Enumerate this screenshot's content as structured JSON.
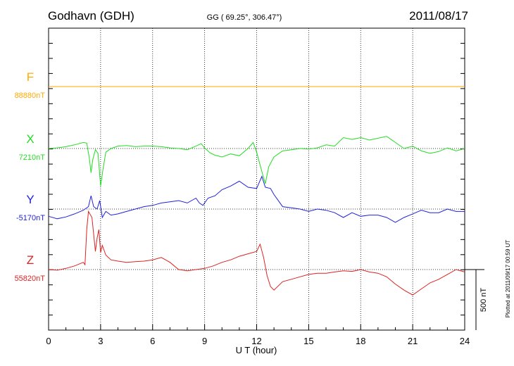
{
  "header": {
    "station": "Godhavn (GDH)",
    "coords": "GG ( 69.25°, 306.47°)",
    "date": "2011/08/17"
  },
  "side_note": "Plotted at 2011/09/17 00:59 UT",
  "scale_bar_label": "500 nT",
  "chart_data": {
    "type": "line",
    "xlabel": "U T (hour)",
    "xlim": [
      0,
      24
    ],
    "xticks": [
      "0",
      "3",
      "6",
      "9",
      "12",
      "15",
      "18",
      "21",
      "24"
    ],
    "nT_per_division": 500,
    "grid": "dotted vertical lines every 3 h; dotted baseline per series",
    "series": [
      {
        "name": "F",
        "baseline_label": "88880nT",
        "baseline": 88880,
        "color": "#ffaa00",
        "x": [
          0,
          24
        ],
        "y": [
          88880,
          88880
        ]
      },
      {
        "name": "X",
        "baseline_label": "7210nT",
        "baseline": 7210,
        "color": "#22dd22",
        "x": [
          0,
          0.5,
          1,
          1.5,
          2,
          2.2,
          2.35,
          2.45,
          2.55,
          2.7,
          2.85,
          3.0,
          3.15,
          3.3,
          3.6,
          4,
          4.5,
          5,
          5.5,
          6,
          6.5,
          7,
          7.5,
          8,
          8.5,
          8.8,
          9,
          9.3,
          9.6,
          10,
          10.5,
          11,
          11.5,
          11.8,
          12.0,
          12.3,
          12.5,
          12.7,
          13,
          13.5,
          14,
          14.5,
          15,
          15.5,
          16,
          16.5,
          17,
          17.5,
          18,
          18.5,
          19,
          19.5,
          20,
          20.5,
          21,
          21.5,
          22,
          22.5,
          23,
          23.5,
          24
        ],
        "y": [
          7210,
          7215,
          7225,
          7240,
          7260,
          7255,
          7130,
          7010,
          7120,
          7200,
          7170,
          6900,
          7050,
          7180,
          7210,
          7230,
          7235,
          7225,
          7230,
          7230,
          7225,
          7215,
          7210,
          7200,
          7230,
          7250,
          7215,
          7175,
          7155,
          7140,
          7165,
          7150,
          7210,
          7260,
          7180,
          7020,
          6920,
          7060,
          7140,
          7190,
          7200,
          7210,
          7205,
          7215,
          7240,
          7230,
          7300,
          7285,
          7300,
          7280,
          7295,
          7310,
          7260,
          7210,
          7230,
          7190,
          7170,
          7185,
          7215,
          7190,
          7210
        ]
      },
      {
        "name": "Y",
        "baseline_label": "-5170nT",
        "baseline": -5170,
        "color": "#2222dd",
        "x": [
          0,
          0.5,
          1,
          1.5,
          2,
          2.3,
          2.45,
          2.6,
          2.8,
          2.95,
          3.1,
          3.3,
          3.6,
          4,
          4.5,
          5,
          5.5,
          6,
          6.5,
          7,
          7.5,
          8,
          8.5,
          8.7,
          8.9,
          9.2,
          9.6,
          10,
          10.5,
          11,
          11.5,
          12,
          12.3,
          12.5,
          12.8,
          13,
          13.5,
          14,
          14.5,
          15,
          15.5,
          16,
          16.5,
          17,
          17.5,
          18,
          18.5,
          19,
          19.5,
          20,
          20.5,
          21,
          21.5,
          22,
          22.5,
          23,
          23.5,
          24
        ],
        "y": [
          -5230,
          -5250,
          -5235,
          -5210,
          -5180,
          -5150,
          -5060,
          -5150,
          -5170,
          -5100,
          -5240,
          -5190,
          -5220,
          -5210,
          -5190,
          -5170,
          -5150,
          -5140,
          -5120,
          -5110,
          -5100,
          -5120,
          -5080,
          -5120,
          -5140,
          -5080,
          -5060,
          -5010,
          -4980,
          -4940,
          -4990,
          -5000,
          -4900,
          -4990,
          -5000,
          -5050,
          -5150,
          -5160,
          -5170,
          -5190,
          -5170,
          -5180,
          -5200,
          -5240,
          -5200,
          -5230,
          -5220,
          -5220,
          -5240,
          -5280,
          -5240,
          -5210,
          -5180,
          -5200,
          -5200,
          -5170,
          -5190,
          -5190
        ]
      },
      {
        "name": "Z",
        "baseline_label": "55820nT",
        "baseline": 55820,
        "color": "#dd2222",
        "x": [
          0,
          0.5,
          1,
          1.5,
          2,
          2.1,
          2.2,
          2.3,
          2.5,
          2.7,
          2.8,
          2.9,
          3.0,
          3.1,
          3.3,
          3.6,
          4,
          4.5,
          5,
          5.5,
          6,
          6.5,
          7,
          7.5,
          8,
          8.5,
          9,
          9.5,
          10,
          10.5,
          11,
          11.5,
          12,
          12.2,
          12.4,
          12.6,
          12.8,
          13,
          13.5,
          14,
          14.5,
          15,
          15.5,
          16,
          16.5,
          17,
          17.5,
          18,
          18.5,
          19,
          19.5,
          20,
          20.5,
          21,
          21.5,
          22,
          22.5,
          23,
          23.5,
          24
        ],
        "y": [
          55820,
          55815,
          55830,
          55850,
          55880,
          55860,
          56150,
          56300,
          56250,
          55970,
          56080,
          56150,
          55960,
          56020,
          55940,
          55900,
          55890,
          55880,
          55885,
          55890,
          55900,
          55920,
          55880,
          55820,
          55810,
          55820,
          55830,
          55850,
          55880,
          55900,
          55930,
          55950,
          55970,
          56030,
          55920,
          55770,
          55680,
          55650,
          55720,
          55740,
          55760,
          55780,
          55790,
          55790,
          55800,
          55810,
          55805,
          55820,
          55800,
          55790,
          55760,
          55700,
          55650,
          55610,
          55660,
          55710,
          55740,
          55780,
          55820,
          55800
        ]
      }
    ]
  }
}
